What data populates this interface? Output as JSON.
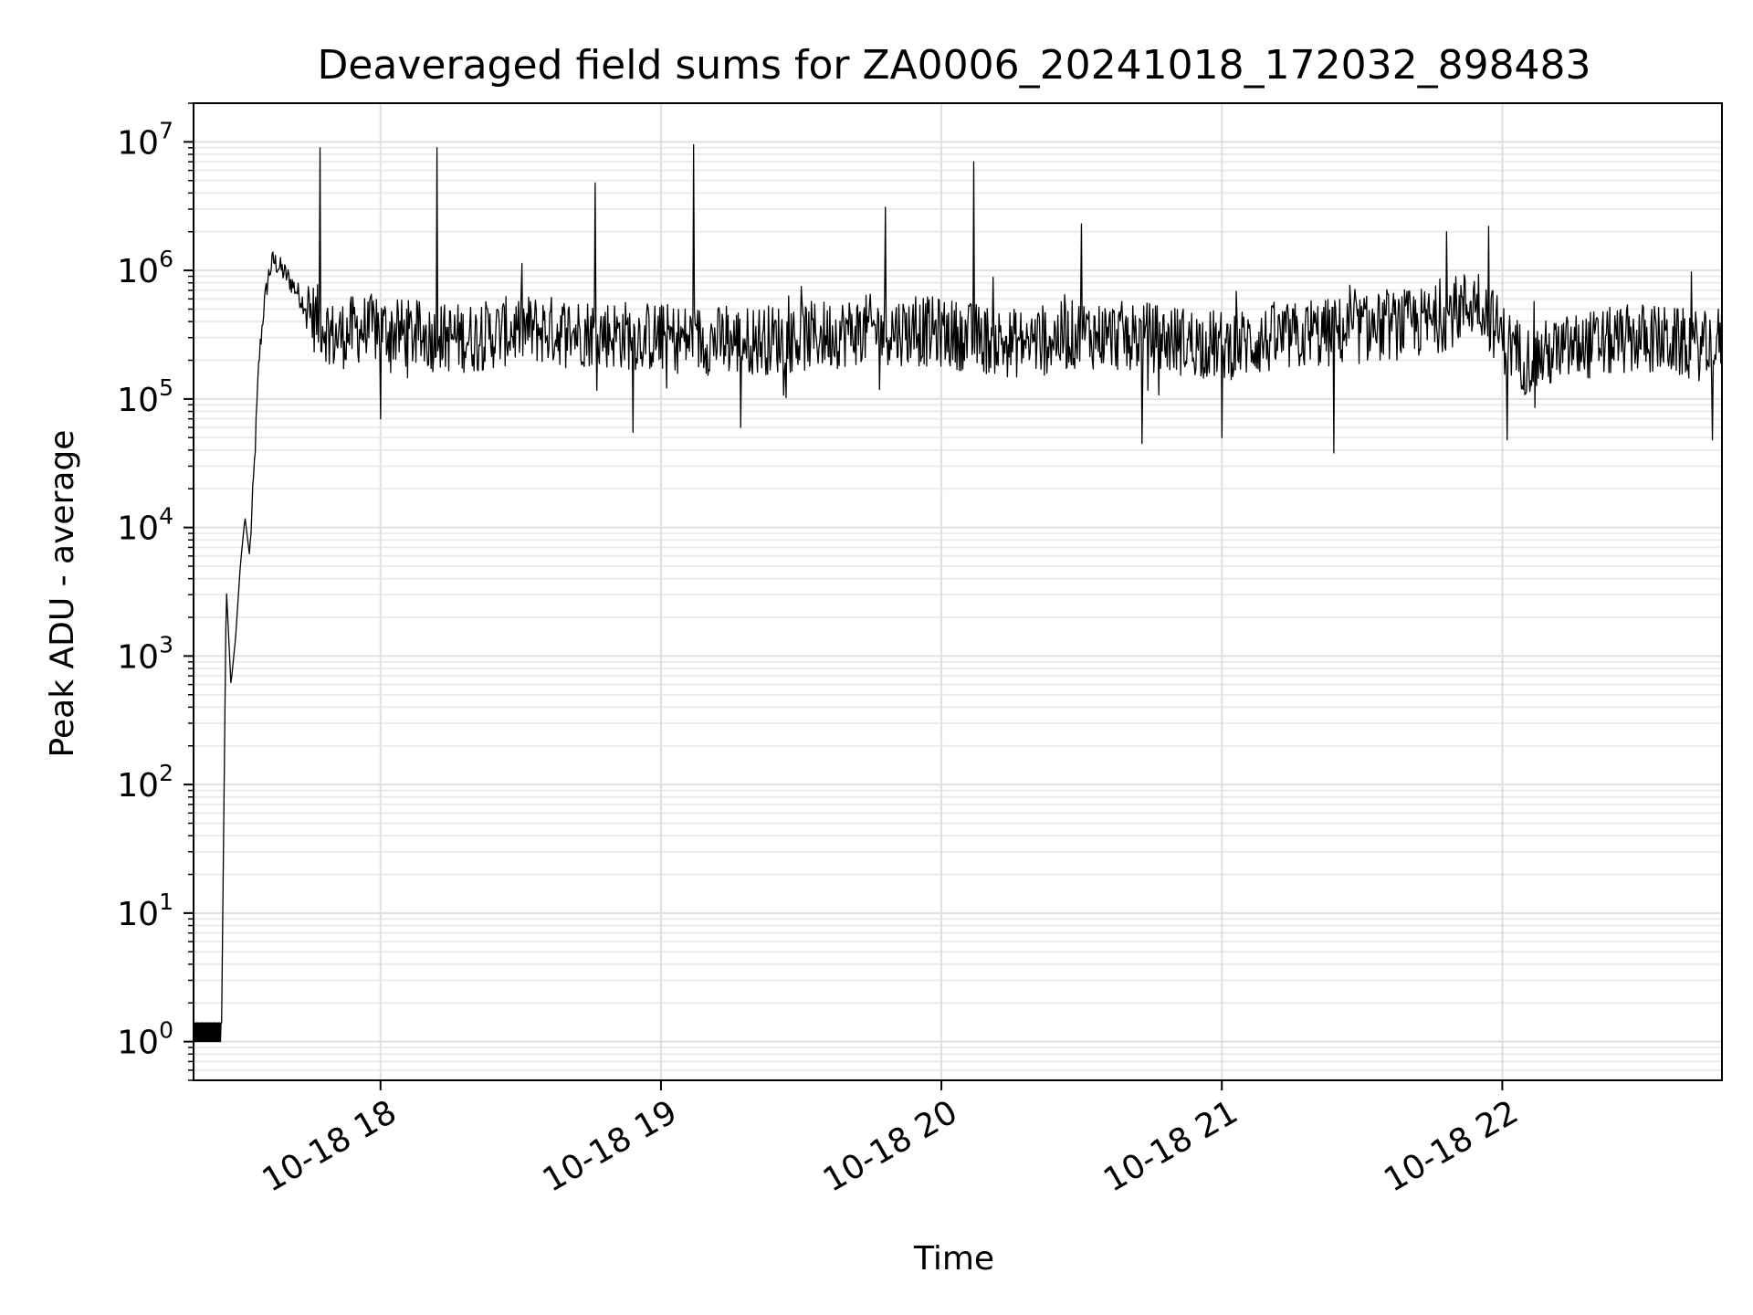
{
  "chart_data": {
    "type": "line",
    "title": "Deaveraged field sums for ZA0006_20241018_172032_898483",
    "xlabel": "Time",
    "ylabel": "Peak ADU - average",
    "yscale": "log",
    "grid": true,
    "xlim": [
      "2024-10-18 17:20",
      "2024-10-18 22:47"
    ],
    "ylim": [
      0.5,
      20000000.0
    ],
    "x_ticks": [
      {
        "value": "2024-10-18 18:00",
        "label": "10-18 18"
      },
      {
        "value": "2024-10-18 19:00",
        "label": "10-18 19"
      },
      {
        "value": "2024-10-18 20:00",
        "label": "10-18 20"
      },
      {
        "value": "2024-10-18 21:00",
        "label": "10-18 21"
      },
      {
        "value": "2024-10-18 22:00",
        "label": "10-18 22"
      }
    ],
    "y_ticks": [
      {
        "value": 1,
        "base": "10",
        "exp": "0"
      },
      {
        "value": 10,
        "base": "10",
        "exp": "1"
      },
      {
        "value": 100,
        "base": "10",
        "exp": "2"
      },
      {
        "value": 1000,
        "base": "10",
        "exp": "3"
      },
      {
        "value": 10000,
        "base": "10",
        "exp": "4"
      },
      {
        "value": 100000,
        "base": "10",
        "exp": "5"
      },
      {
        "value": 1000000,
        "base": "10",
        "exp": "6"
      },
      {
        "value": 10000000,
        "base": "10",
        "exp": "7"
      }
    ],
    "line_color": "#000000",
    "series": [
      {
        "x": [
          "2024-10-18 17:20",
          "2024-10-18 17:26",
          "2024-10-18 17:27",
          "2024-10-18 17:28",
          "2024-10-18 17:29",
          "2024-10-18 17:30",
          "2024-10-18 17:31",
          "2024-10-18 17:32",
          "2024-10-18 17:33",
          "2024-10-18 17:34",
          "2024-10-18 17:35",
          "2024-10-18 17:36",
          "2024-10-18 17:37",
          "2024-10-18 17:38",
          "2024-10-18 17:40",
          "2024-10-18 17:42",
          "2024-10-18 17:45",
          "2024-10-18 17:48",
          "2024-10-18 17:50",
          "2024-10-18 17:52",
          "2024-10-18 17:55",
          "2024-10-18 18:00",
          "2024-10-18 18:05",
          "2024-10-18 18:12",
          "2024-10-18 18:20",
          "2024-10-18 18:30",
          "2024-10-18 18:45",
          "2024-10-18 19:00",
          "2024-10-18 19:15",
          "2024-10-18 19:30",
          "2024-10-18 19:45",
          "2024-10-18 20:00",
          "2024-10-18 20:15",
          "2024-10-18 20:30",
          "2024-10-18 20:45",
          "2024-10-18 21:00",
          "2024-10-18 21:15",
          "2024-10-18 21:30",
          "2024-10-18 21:45",
          "2024-10-18 21:55",
          "2024-10-18 22:00",
          "2024-10-18 22:05",
          "2024-10-18 22:15",
          "2024-10-18 22:30",
          "2024-10-18 22:45",
          "2024-10-18 22:47"
        ],
        "y": [
          1,
          1.4,
          3500,
          600,
          1400,
          5000,
          12000,
          6000,
          30000,
          200000,
          500000,
          900000,
          1200000,
          1100000,
          900000,
          700000,
          450000,
          380000,
          300000,
          320000,
          350000,
          350000,
          320000,
          300000,
          300000,
          350000,
          330000,
          300000,
          280000,
          300000,
          350000,
          330000,
          270000,
          320000,
          300000,
          260000,
          300000,
          350000,
          400000,
          600000,
          300000,
          200000,
          250000,
          300000,
          250000,
          300000
        ]
      }
    ],
    "spikes": [
      {
        "x": "2024-10-18 17:47",
        "y": 9000000
      },
      {
        "x": "2024-10-18 18:12",
        "y": 9000000
      },
      {
        "x": "2024-10-18 18:46",
        "y": 4800000
      },
      {
        "x": "2024-10-18 19:07",
        "y": 9500000
      },
      {
        "x": "2024-10-18 19:48",
        "y": 3100000
      },
      {
        "x": "2024-10-18 20:07",
        "y": 7000000
      },
      {
        "x": "2024-10-18 20:30",
        "y": 2300000
      },
      {
        "x": "2024-10-18 21:48",
        "y": 2000000
      },
      {
        "x": "2024-10-18 21:57",
        "y": 2200000
      }
    ],
    "dips": [
      {
        "x": "2024-10-18 18:00",
        "y": 70000
      },
      {
        "x": "2024-10-18 18:54",
        "y": 55000
      },
      {
        "x": "2024-10-18 19:17",
        "y": 60000
      },
      {
        "x": "2024-10-18 20:43",
        "y": 45000
      },
      {
        "x": "2024-10-18 21:00",
        "y": 50000
      },
      {
        "x": "2024-10-18 21:24",
        "y": 38000
      },
      {
        "x": "2024-10-18 22:01",
        "y": 48000
      },
      {
        "x": "2024-10-18 22:45",
        "y": 48000
      }
    ]
  }
}
